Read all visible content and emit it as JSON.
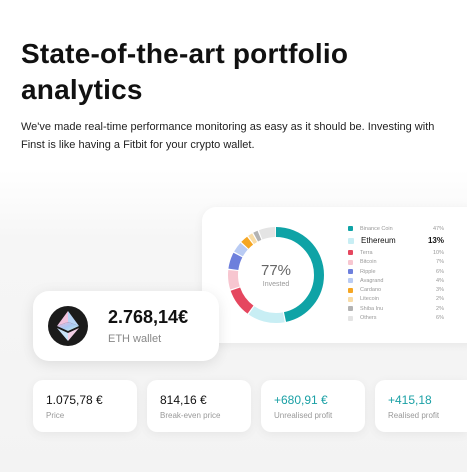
{
  "hero": {
    "title_line1": "State-of-the-art portfolio",
    "title_line2": "analytics",
    "description": "We've made real-time performance monitoring as easy as it should be. Investing with Finst is like having a Fitbit for your crypto wallet."
  },
  "allocation": {
    "center_value": "77%",
    "center_label": "Invested",
    "legend": [
      {
        "name": "Binance Coin",
        "pct": "47%",
        "value": 47,
        "color": "#0fa3a6",
        "highlight": false
      },
      {
        "name": "Ethereum",
        "pct": "13%",
        "value": 13,
        "color": "#c8eef4",
        "highlight": true
      },
      {
        "name": "Terra",
        "pct": "10%",
        "value": 10,
        "color": "#e5475f",
        "highlight": false
      },
      {
        "name": "Bitcoin",
        "pct": "7%",
        "value": 7,
        "color": "#f7c6d0",
        "highlight": false
      },
      {
        "name": "Ripple",
        "pct": "6%",
        "value": 6,
        "color": "#6d7fdc",
        "highlight": false
      },
      {
        "name": "Avagrand",
        "pct": "4%",
        "value": 4,
        "color": "#b9cbf3",
        "highlight": false
      },
      {
        "name": "Cardano",
        "pct": "3%",
        "value": 3,
        "color": "#f5a623",
        "highlight": false
      },
      {
        "name": "Litecoin",
        "pct": "2%",
        "value": 2,
        "color": "#f8dca6",
        "highlight": false
      },
      {
        "name": "Shiba Inu",
        "pct": "2%",
        "value": 2,
        "color": "#b3b3b3",
        "highlight": false
      },
      {
        "name": "Others",
        "pct": "6%",
        "value": 6,
        "color": "#e4e4e4",
        "highlight": false
      }
    ]
  },
  "wallet": {
    "value": "2.768,14€",
    "label": "ETH wallet"
  },
  "stats": [
    {
      "value": "1.075,78 €",
      "label": "Price",
      "positive": false
    },
    {
      "value": "814,16 €",
      "label": "Break-even price",
      "positive": false
    },
    {
      "value": "+680,91 €",
      "label": "Unrealised profit",
      "positive": true
    },
    {
      "value": "+415,18",
      "label": "Realised profit",
      "positive": true
    }
  ]
}
